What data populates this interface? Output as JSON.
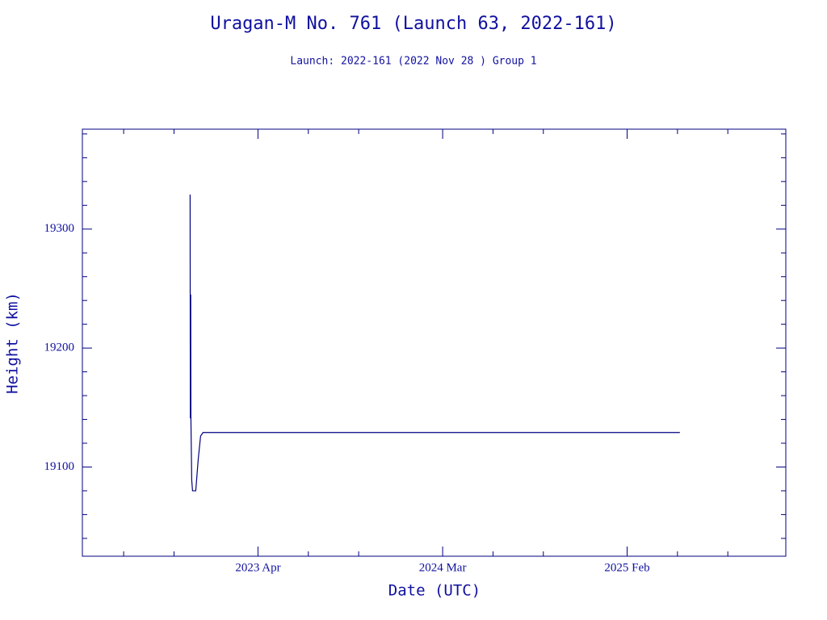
{
  "chart_data": {
    "type": "line",
    "title": "Uragan-M No. 761 (Launch 63, 2022-161)",
    "subtitle": "Launch: 2022-161  (2022 Nov 28 )  Group 1",
    "x_label": "Date (UTC)",
    "y_label": "Height (km)",
    "x": [
      2022.913,
      2022.914,
      2022.916,
      2022.917,
      2022.921,
      2022.925,
      2022.941,
      2022.953,
      2022.965,
      2022.977,
      2025.345
    ],
    "series": [
      {
        "name": "Height",
        "color": "#000080",
        "values": [
          19329,
          19141,
          19245,
          19140,
          19089,
          19080,
          19080,
          19106,
          19126,
          19129,
          19129
        ]
      }
    ],
    "xlim": [
      2022.378,
      2025.871
    ],
    "xticks": [
      {
        "value": 2023.25,
        "label": "2023 Apr"
      },
      {
        "value": 2024.167,
        "label": "2024 Mar"
      },
      {
        "value": 2025.083,
        "label": "2025 Feb"
      }
    ],
    "xminor": [
      2022.583,
      2022.833,
      2023.5,
      2023.75,
      2024.417,
      2024.667,
      2025.333,
      2025.583
    ],
    "ylim": [
      19025,
      19384
    ],
    "yticks": [
      19100,
      19200,
      19300
    ],
    "yminor": [
      19040,
      19060,
      19080,
      19120,
      19140,
      19160,
      19180,
      19220,
      19240,
      19260,
      19280,
      19320,
      19340,
      19360,
      19380
    ]
  }
}
